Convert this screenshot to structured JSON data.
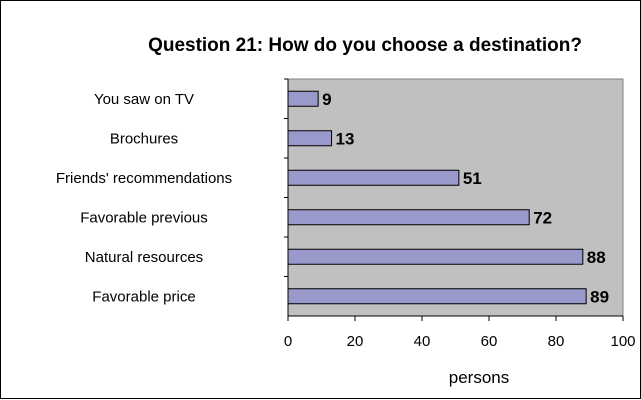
{
  "chart_data": {
    "type": "bar",
    "orientation": "horizontal",
    "title": "Question 21: How do you choose a destination?",
    "xlabel": "persons",
    "ylabel": "",
    "categories": [
      "You saw on TV",
      "Brochures",
      "Friends' recommendations",
      "Favorable previous",
      "Natural resources",
      "Favorable price"
    ],
    "values": [
      9,
      13,
      51,
      72,
      88,
      89
    ],
    "xlim": [
      0,
      100
    ],
    "xticks": [
      "0",
      "20",
      "40",
      "60",
      "80",
      "100"
    ],
    "grid": false,
    "legend": "none",
    "data_labels": true,
    "colors": {
      "bar_fill": "#9999cc",
      "bar_stroke": "#000000",
      "plot_background": "#c0c0c0",
      "page_background": "#ffffff"
    }
  }
}
